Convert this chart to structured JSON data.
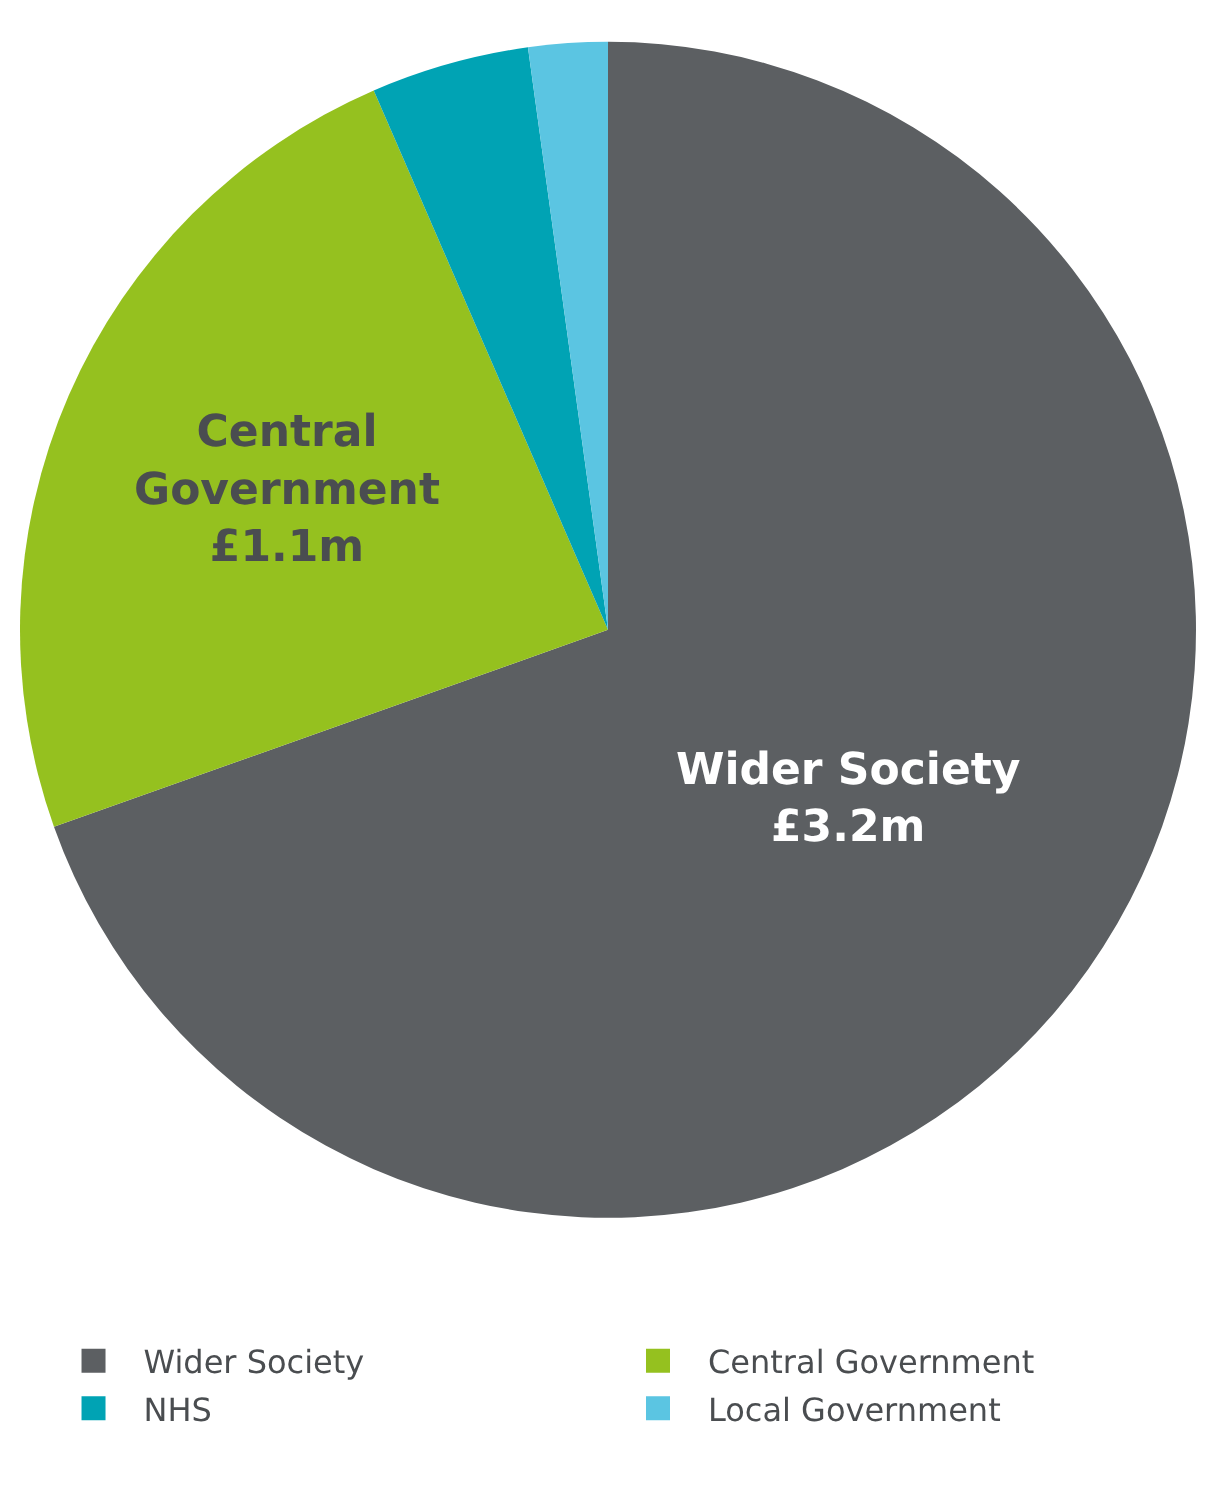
{
  "chart_data": {
    "type": "pie",
    "categories": [
      "Wider Society",
      "Central Government",
      "NHS",
      "Local Government"
    ],
    "values": [
      3.2,
      1.1,
      0.2,
      0.1
    ],
    "value_labels": [
      "£3.2m",
      "£1.1m",
      null,
      null
    ],
    "colors": [
      "#5c5f62",
      "#95c11f",
      "#00a3b4",
      "#5bc5e2"
    ],
    "legend": "bottom"
  }
}
